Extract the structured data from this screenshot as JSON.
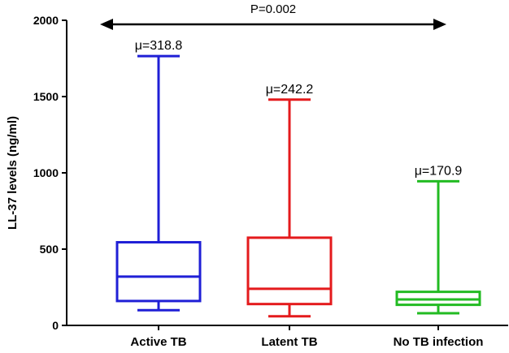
{
  "chart_data": {
    "type": "box",
    "title": "",
    "xlabel": "",
    "ylabel": "LL-37 levels (ng/ml)",
    "ylim": [
      0,
      2000
    ],
    "yticks": [
      0,
      500,
      1000,
      1500,
      2000
    ],
    "grid": false,
    "legend": "none",
    "categories": [
      "Active TB",
      "Latent TB",
      "No TB infection"
    ],
    "boxes": [
      {
        "category": "Active TB",
        "min": 100,
        "q1": 160,
        "median": 320,
        "q3": 545,
        "max": 1765,
        "mean_label": "μ=318.8",
        "color": "#1f1fd6"
      },
      {
        "category": "Latent TB",
        "min": 60,
        "q1": 140,
        "median": 240,
        "q3": 575,
        "max": 1480,
        "mean_label": "μ=242.2",
        "color": "#e41a1c"
      },
      {
        "category": "No TB infection",
        "min": 80,
        "q1": 135,
        "median": 170,
        "q3": 220,
        "max": 945,
        "mean_label": "μ=170.9",
        "color": "#22bb22"
      }
    ],
    "annotation": {
      "text": "P=0.002",
      "from": "Active TB",
      "to": "No TB infection",
      "arrow": "double-headed"
    }
  }
}
